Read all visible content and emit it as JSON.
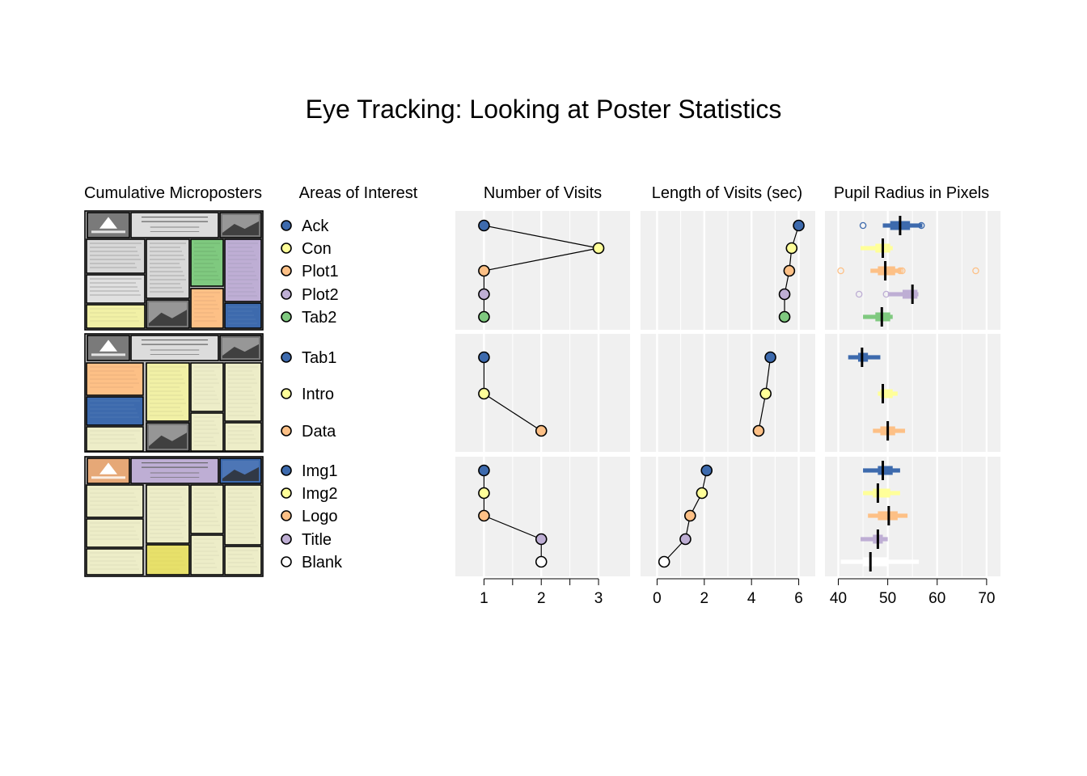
{
  "chart_data": {
    "type": "scatter",
    "title": "Eye Tracking: Looking at Poster Statistics",
    "column_titles": {
      "posters": "Cumulative Microposters",
      "aoi": "Areas of Interest",
      "visits": "Number of Visits",
      "length": "Length of Visits (sec)",
      "pupil": "Pupil Radius in Pixels"
    },
    "colors": {
      "blue": "#3d6aad",
      "yellow": "#ffff99",
      "orange": "#fdc086",
      "purple": "#beaed4",
      "green": "#7fc97f",
      "white": "#ffffff",
      "panel_bg": "#f0f0f0"
    },
    "axes": {
      "visits": {
        "xlim": [
          0.5,
          3.55
        ],
        "ticks": [
          "1",
          "2",
          "3"
        ],
        "minor": [
          1.5,
          2.5
        ]
      },
      "length": {
        "xlim": [
          -0.7,
          6.7
        ],
        "ticks": [
          "0",
          "2",
          "4",
          "6"
        ]
      },
      "pupil": {
        "xlim": [
          37.3,
          72.8
        ],
        "ticks": [
          "40",
          "50",
          "60",
          "70"
        ]
      }
    },
    "groups": [
      {
        "rows": [
          {
            "label": "Ack",
            "color": "blue",
            "visits": 1,
            "length": 6.0,
            "pupil": {
              "q1": 50.5,
              "q3": 54.5,
              "median": 52.5,
              "whisker_low": 49.0,
              "whisker_high": 57.0,
              "outliers": [
                45.0,
                56.8
              ]
            }
          },
          {
            "label": "Con",
            "color": "yellow",
            "visits": 3,
            "length": 5.7,
            "pupil": {
              "q1": 47.5,
              "q3": 50.5,
              "median": 49.0,
              "whisker_low": 44.5,
              "whisker_high": 51.0,
              "outliers": []
            }
          },
          {
            "label": "Plot1",
            "color": "orange",
            "visits": 1,
            "length": 5.6,
            "pupil": {
              "q1": 48.0,
              "q3": 51.5,
              "median": 49.5,
              "whisker_low": 46.5,
              "whisker_high": 52.8,
              "outliers": [
                40.5,
                52.5,
                52.9,
                67.8
              ]
            }
          },
          {
            "label": "Plot2",
            "color": "purple",
            "visits": 1,
            "length": 5.4,
            "pupil": {
              "q1": 53.0,
              "q3": 56.0,
              "median": 55.0,
              "whisker_low": 50.0,
              "whisker_high": 56.2,
              "outliers": [
                44.2,
                49.7
              ]
            }
          },
          {
            "label": "Tab2",
            "color": "green",
            "visits": 1,
            "length": 5.4,
            "pupil": {
              "q1": 47.5,
              "q3": 50.5,
              "median": 48.8,
              "whisker_low": 45.0,
              "whisker_high": 51.0,
              "outliers": []
            }
          }
        ]
      },
      {
        "rows": [
          {
            "label": "Tab1",
            "color": "blue",
            "visits": 1,
            "length": 4.8,
            "pupil": {
              "q1": 44.0,
              "q3": 46.0,
              "median": 44.8,
              "whisker_low": 42.0,
              "whisker_high": 48.5,
              "outliers": []
            }
          },
          {
            "label": "Intro",
            "color": "yellow",
            "visits": 1,
            "length": 4.6,
            "pupil": {
              "q1": 48.5,
              "q3": 51.0,
              "median": 49.0,
              "whisker_low": 48.0,
              "whisker_high": 52.0,
              "outliers": []
            }
          },
          {
            "label": "Data",
            "color": "orange",
            "visits": 2,
            "length": 4.3,
            "pupil": {
              "q1": 48.5,
              "q3": 51.5,
              "median": 50.0,
              "whisker_low": 47.0,
              "whisker_high": 53.5,
              "outliers": []
            }
          }
        ]
      },
      {
        "rows": [
          {
            "label": "Img1",
            "color": "blue",
            "visits": 1,
            "length": 2.1,
            "pupil": {
              "q1": 48.0,
              "q3": 51.0,
              "median": 49.0,
              "whisker_low": 45.0,
              "whisker_high": 52.5,
              "outliers": []
            }
          },
          {
            "label": "Img2",
            "color": "yellow",
            "visits": 1,
            "length": 1.9,
            "pupil": {
              "q1": 47.0,
              "q3": 50.5,
              "median": 48.0,
              "whisker_low": 45.0,
              "whisker_high": 52.5,
              "outliers": []
            }
          },
          {
            "label": "Logo",
            "color": "orange",
            "visits": 1,
            "length": 1.4,
            "pupil": {
              "q1": 48.0,
              "q3": 52.0,
              "median": 50.2,
              "whisker_low": 46.0,
              "whisker_high": 54.0,
              "outliers": []
            }
          },
          {
            "label": "Title",
            "color": "purple",
            "visits": 2,
            "length": 1.2,
            "pupil": {
              "q1": 47.0,
              "q3": 49.0,
              "median": 48.0,
              "whisker_low": 44.5,
              "whisker_high": 50.0,
              "outliers": []
            }
          },
          {
            "label": "Blank",
            "color": "white",
            "visits": 2,
            "length": 0.3,
            "pupil": {
              "q1": 45.0,
              "q3": 50.0,
              "median": 46.5,
              "whisker_low": 40.5,
              "whisker_high": 56.3,
              "outliers": []
            }
          }
        ]
      }
    ]
  }
}
